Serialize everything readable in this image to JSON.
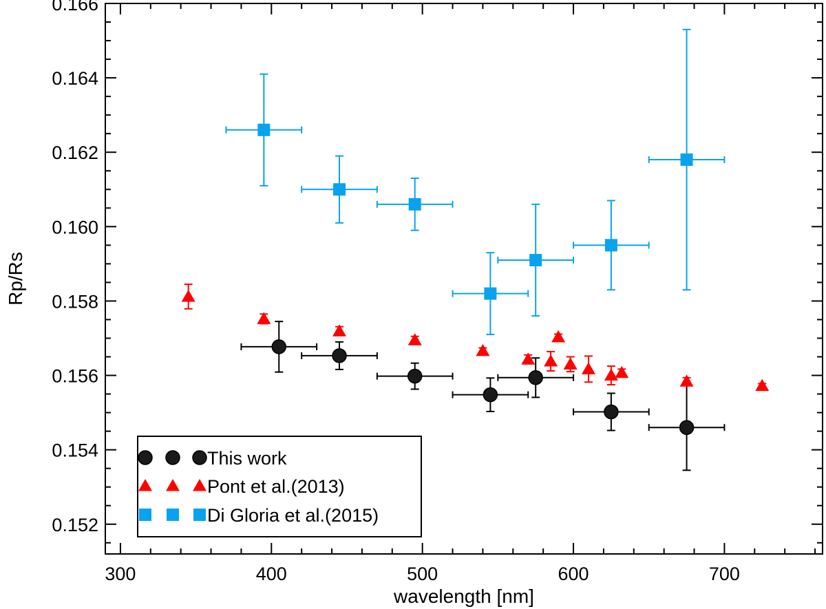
{
  "chart_data": {
    "type": "scatter",
    "xlabel": "wavelength [nm]",
    "ylabel": "Rp/Rs",
    "xlim": [
      290,
      765
    ],
    "ylim": [
      0.1512,
      0.166
    ],
    "x_ticks": [
      300,
      400,
      500,
      600,
      700
    ],
    "y_ticks": [
      0.152,
      0.154,
      0.156,
      0.158,
      0.16,
      0.162,
      0.164,
      0.166
    ],
    "x_tick_labels": [
      "300",
      "400",
      "500",
      "600",
      "700"
    ],
    "y_tick_labels": [
      "0.152",
      "0.154",
      "0.156",
      "0.158",
      "0.160",
      "0.162",
      "0.164",
      "0.166"
    ],
    "grid": false,
    "legend_position": "bottom-left",
    "series": [
      {
        "name": "This work",
        "marker": "circle",
        "color": "#000000",
        "points": [
          {
            "x": 405,
            "y": 0.15677,
            "xerr": 25,
            "yerr": 0.00068
          },
          {
            "x": 445,
            "y": 0.15653,
            "xerr": 25,
            "yerr": 0.00037
          },
          {
            "x": 495,
            "y": 0.15598,
            "xerr": 25,
            "yerr": 0.00035
          },
          {
            "x": 545,
            "y": 0.15548,
            "xerr": 25,
            "yerr": 0.00045
          },
          {
            "x": 575,
            "y": 0.15594,
            "xerr": 25,
            "yerr": 0.00053
          },
          {
            "x": 625,
            "y": 0.15502,
            "xerr": 25,
            "yerr": 0.0005
          },
          {
            "x": 675,
            "y": 0.1546,
            "xerr": 25,
            "yerr": 0.00115
          }
        ]
      },
      {
        "name": "Pont et al.(2013)",
        "marker": "triangle",
        "color": "#ff0000",
        "points": [
          {
            "x": 345,
            "y": 0.15812,
            "xerr": 0,
            "yerr": 0.00033
          },
          {
            "x": 395,
            "y": 0.15752,
            "xerr": 0,
            "yerr": 0.00013
          },
          {
            "x": 445,
            "y": 0.15719,
            "xerr": 0,
            "yerr": 0.00012
          },
          {
            "x": 495,
            "y": 0.15695,
            "xerr": 0,
            "yerr": 0.0001
          },
          {
            "x": 540,
            "y": 0.15666,
            "xerr": 0,
            "yerr": 8e-05
          },
          {
            "x": 570,
            "y": 0.15643,
            "xerr": 0,
            "yerr": 0.00012
          },
          {
            "x": 585,
            "y": 0.15638,
            "xerr": 0,
            "yerr": 0.00026
          },
          {
            "x": 590,
            "y": 0.15703,
            "xerr": 0,
            "yerr": 8e-05
          },
          {
            "x": 598,
            "y": 0.1563,
            "xerr": 0,
            "yerr": 0.0002
          },
          {
            "x": 610,
            "y": 0.15617,
            "xerr": 0,
            "yerr": 0.00035
          },
          {
            "x": 625,
            "y": 0.156,
            "xerr": 0,
            "yerr": 0.00025
          },
          {
            "x": 632,
            "y": 0.15607,
            "xerr": 0,
            "yerr": 0.0001
          },
          {
            "x": 675,
            "y": 0.15584,
            "xerr": 0,
            "yerr": 0.0001
          },
          {
            "x": 725,
            "y": 0.15572,
            "xerr": 0,
            "yerr": 6e-05
          }
        ]
      },
      {
        "name": "Di Gloria et al.(2015)",
        "marker": "square",
        "color": "#09a2ee",
        "points": [
          {
            "x": 395,
            "y": 0.1626,
            "xerr": 25,
            "yerr": 0.0015
          },
          {
            "x": 445,
            "y": 0.161,
            "xerr": 25,
            "yerr": 0.0009
          },
          {
            "x": 495,
            "y": 0.1606,
            "xerr": 25,
            "yerr": 0.0007
          },
          {
            "x": 545,
            "y": 0.1582,
            "xerr": 25,
            "yerr": 0.0011
          },
          {
            "x": 575,
            "y": 0.1591,
            "xerr": 25,
            "yerr": 0.0015
          },
          {
            "x": 625,
            "y": 0.1595,
            "xerr": 25,
            "yerr": 0.0012
          },
          {
            "x": 675,
            "y": 0.1618,
            "xerr": 25,
            "yerr": 0.0035
          }
        ]
      }
    ]
  }
}
